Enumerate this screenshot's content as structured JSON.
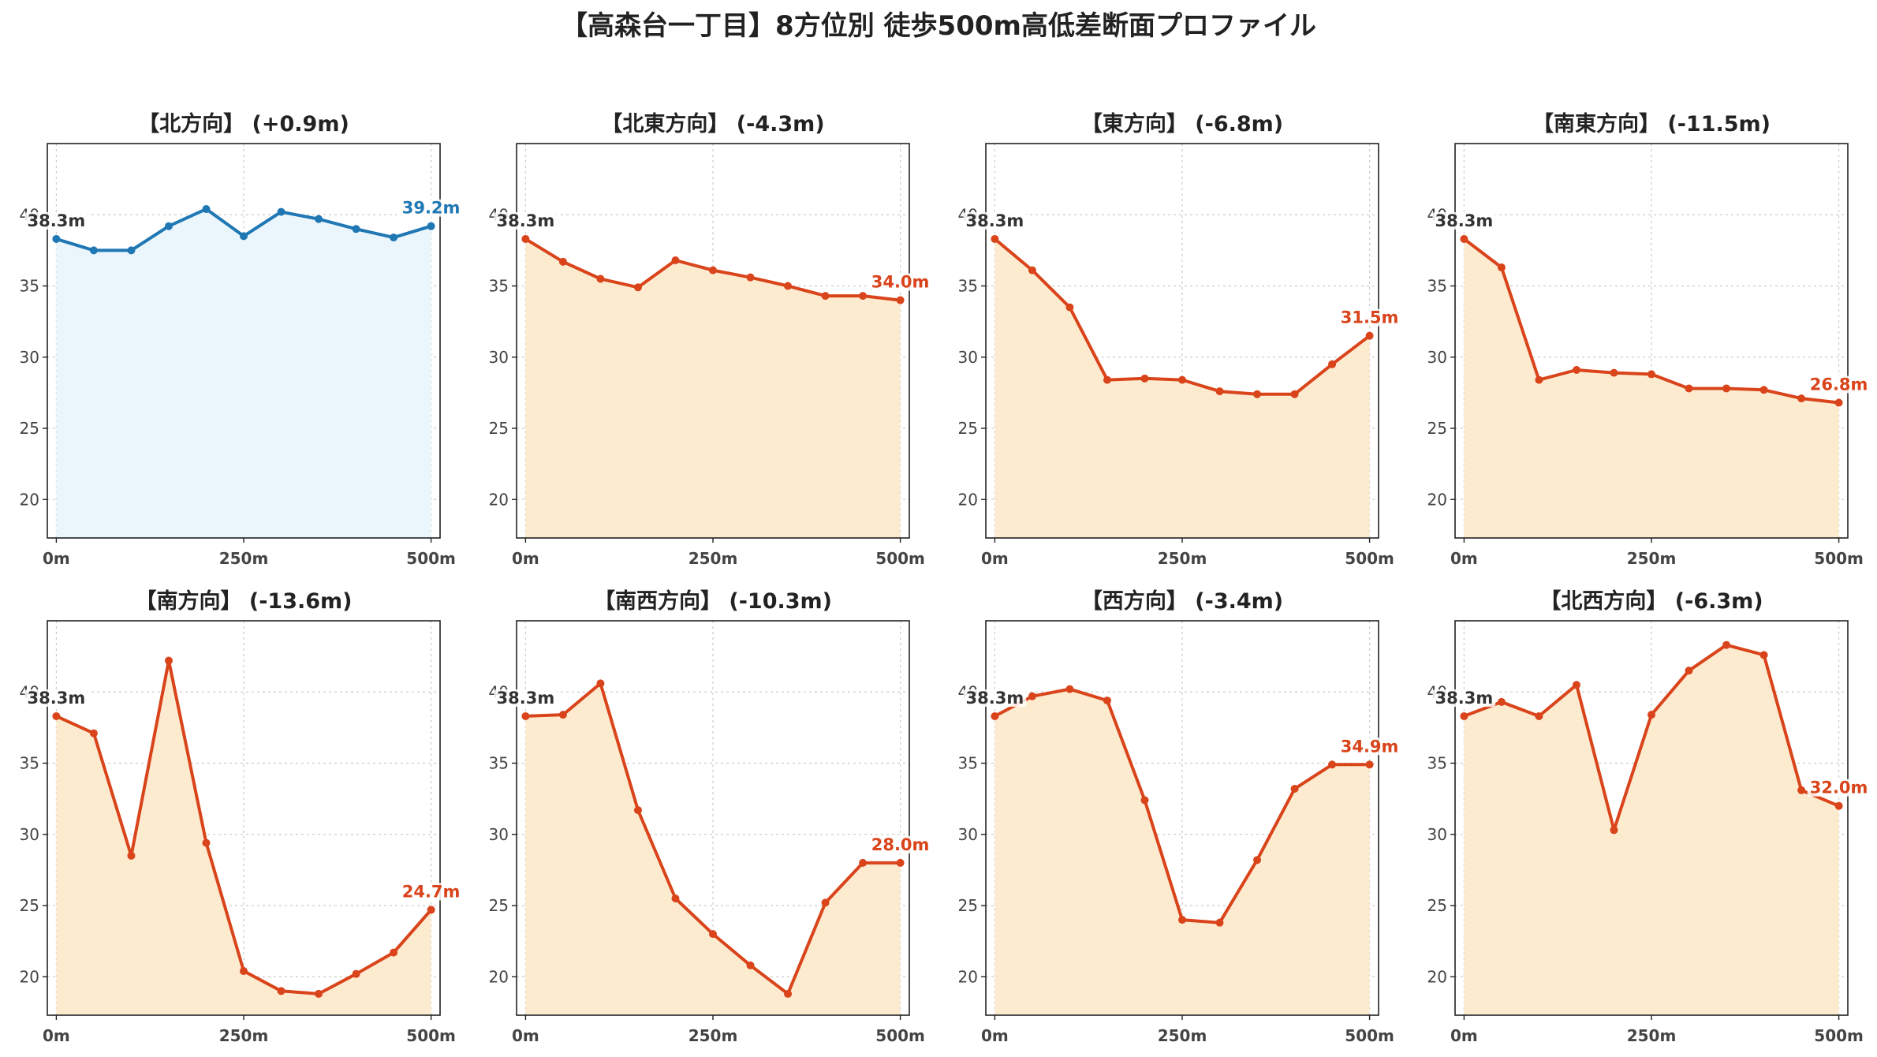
{
  "suptitle": "【高森台一丁目】8方位別 徒歩500m高低差断面プロファイル",
  "colors": {
    "up_line": "#1f77b4",
    "up_fill": "#eaf6fb",
    "down_line": "#d9441b",
    "down_fill": "#fdebd0",
    "start_label": "#333333",
    "grid": "#cccccc"
  },
  "chart_data": [
    {
      "type": "area",
      "title": "【北方向】 (+0.9m)",
      "trend": "up",
      "x": [
        0,
        50,
        100,
        150,
        200,
        250,
        300,
        350,
        400,
        450,
        500
      ],
      "values": [
        38.3,
        37.5,
        37.5,
        39.2,
        40.4,
        38.5,
        40.2,
        39.7,
        39.0,
        38.4,
        39.2
      ],
      "start_label": "38.3m",
      "end_label": "39.2m",
      "xticks": [
        "0m",
        "250m",
        "500m"
      ],
      "yticks": [
        "20",
        "25",
        "30",
        "35",
        "40"
      ],
      "ylim": [
        17.3,
        45.0
      ],
      "xlim": [
        -12,
        512
      ],
      "grid": true
    },
    {
      "type": "area",
      "title": "【北東方向】 (-4.3m)",
      "trend": "down",
      "x": [
        0,
        50,
        100,
        150,
        200,
        250,
        300,
        350,
        400,
        450,
        500
      ],
      "values": [
        38.3,
        36.7,
        35.5,
        34.9,
        36.8,
        36.1,
        35.6,
        35.0,
        34.3,
        34.3,
        34.0
      ],
      "start_label": "38.3m",
      "end_label": "34.0m",
      "xticks": [
        "0m",
        "250m",
        "500m"
      ],
      "yticks": [
        "20",
        "25",
        "30",
        "35",
        "40"
      ],
      "ylim": [
        17.3,
        45.0
      ],
      "xlim": [
        -12,
        512
      ],
      "grid": true
    },
    {
      "type": "area",
      "title": "【東方向】 (-6.8m)",
      "trend": "down",
      "x": [
        0,
        50,
        100,
        150,
        200,
        250,
        300,
        350,
        400,
        450,
        500
      ],
      "values": [
        38.3,
        36.1,
        33.5,
        28.4,
        28.5,
        28.4,
        27.6,
        27.4,
        27.4,
        29.5,
        31.5
      ],
      "start_label": "38.3m",
      "end_label": "31.5m",
      "xticks": [
        "0m",
        "250m",
        "500m"
      ],
      "yticks": [
        "20",
        "25",
        "30",
        "35",
        "40"
      ],
      "ylim": [
        17.3,
        45.0
      ],
      "xlim": [
        -12,
        512
      ],
      "grid": true
    },
    {
      "type": "area",
      "title": "【南東方向】 (-11.5m)",
      "trend": "down",
      "x": [
        0,
        50,
        100,
        150,
        200,
        250,
        300,
        350,
        400,
        450,
        500
      ],
      "values": [
        38.3,
        36.3,
        28.4,
        29.1,
        28.9,
        28.8,
        27.8,
        27.8,
        27.7,
        27.1,
        26.8
      ],
      "start_label": "38.3m",
      "end_label": "26.8m",
      "xticks": [
        "0m",
        "250m",
        "500m"
      ],
      "yticks": [
        "20",
        "25",
        "30",
        "35",
        "40"
      ],
      "ylim": [
        17.3,
        45.0
      ],
      "xlim": [
        -12,
        512
      ],
      "grid": true
    },
    {
      "type": "area",
      "title": "【南方向】 (-13.6m)",
      "trend": "down",
      "x": [
        0,
        50,
        100,
        150,
        200,
        250,
        300,
        350,
        400,
        450,
        500
      ],
      "values": [
        38.3,
        37.1,
        28.5,
        42.2,
        29.4,
        20.4,
        19.0,
        18.8,
        20.2,
        21.7,
        24.7
      ],
      "start_label": "38.3m",
      "end_label": "24.7m",
      "xticks": [
        "0m",
        "250m",
        "500m"
      ],
      "yticks": [
        "20",
        "25",
        "30",
        "35",
        "40"
      ],
      "ylim": [
        17.3,
        45.0
      ],
      "xlim": [
        -12,
        512
      ],
      "grid": true
    },
    {
      "type": "area",
      "title": "【南西方向】 (-10.3m)",
      "trend": "down",
      "x": [
        0,
        50,
        100,
        150,
        200,
        250,
        300,
        350,
        400,
        450,
        500
      ],
      "values": [
        38.3,
        38.4,
        40.6,
        31.7,
        25.5,
        23.0,
        20.8,
        18.8,
        25.2,
        28.0,
        28.0
      ],
      "start_label": "38.3m",
      "end_label": "28.0m",
      "xticks": [
        "0m",
        "250m",
        "500m"
      ],
      "yticks": [
        "20",
        "25",
        "30",
        "35",
        "40"
      ],
      "ylim": [
        17.3,
        45.0
      ],
      "xlim": [
        -12,
        512
      ],
      "grid": true
    },
    {
      "type": "area",
      "title": "【西方向】 (-3.4m)",
      "trend": "down",
      "x": [
        0,
        50,
        100,
        150,
        200,
        250,
        300,
        350,
        400,
        450,
        500
      ],
      "values": [
        38.3,
        39.7,
        40.2,
        39.4,
        32.4,
        24.0,
        23.8,
        28.2,
        33.2,
        34.9,
        34.9
      ],
      "start_label": "38.3m",
      "end_label": "34.9m",
      "xticks": [
        "0m",
        "250m",
        "500m"
      ],
      "yticks": [
        "20",
        "25",
        "30",
        "35",
        "40"
      ],
      "ylim": [
        17.3,
        45.0
      ],
      "xlim": [
        -12,
        512
      ],
      "grid": true
    },
    {
      "type": "area",
      "title": "【北西方向】 (-6.3m)",
      "trend": "down",
      "x": [
        0,
        50,
        100,
        150,
        200,
        250,
        300,
        350,
        400,
        450,
        500
      ],
      "values": [
        38.3,
        39.3,
        38.3,
        40.5,
        30.3,
        38.4,
        41.5,
        43.3,
        42.6,
        33.1,
        32.0
      ],
      "start_label": "38.3m",
      "end_label": "32.0m",
      "xticks": [
        "0m",
        "250m",
        "500m"
      ],
      "yticks": [
        "20",
        "25",
        "30",
        "35",
        "40"
      ],
      "ylim": [
        17.3,
        45.0
      ],
      "xlim": [
        -12,
        512
      ],
      "grid": true
    }
  ]
}
